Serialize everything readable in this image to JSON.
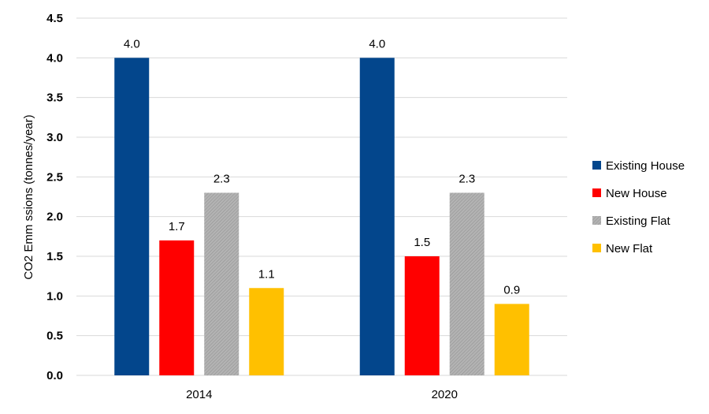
{
  "chart_data": {
    "type": "bar",
    "title": "",
    "xlabel": "",
    "ylabel": "CO2 Emm ssions (tonnes/year)",
    "categories": [
      "2014",
      "2020"
    ],
    "ylim": [
      0,
      4.5
    ],
    "yticks": [
      "0.0",
      "0.5",
      "1.0",
      "1.5",
      "2.0",
      "2.5",
      "3.0",
      "3.5",
      "4.0",
      "4.5"
    ],
    "grid": true,
    "legend_position": "right",
    "series": [
      {
        "name": "Existing House",
        "color": "#03468c",
        "values": [
          4.0,
          4.0
        ],
        "labels": [
          "4.0",
          "4.0"
        ],
        "pattern": "solid"
      },
      {
        "name": "New House",
        "color": "#ff0000",
        "values": [
          1.7,
          1.5
        ],
        "labels": [
          "1.7",
          "1.5"
        ],
        "pattern": "solid"
      },
      {
        "name": "Existing Flat",
        "color": "#a6a6a6",
        "values": [
          2.3,
          2.3
        ],
        "labels": [
          "2.3",
          "2.3"
        ],
        "pattern": "hatched"
      },
      {
        "name": "New Flat",
        "color": "#ffc000",
        "values": [
          1.1,
          0.9
        ],
        "labels": [
          "1.1",
          "0.9"
        ],
        "pattern": "solid"
      }
    ]
  }
}
